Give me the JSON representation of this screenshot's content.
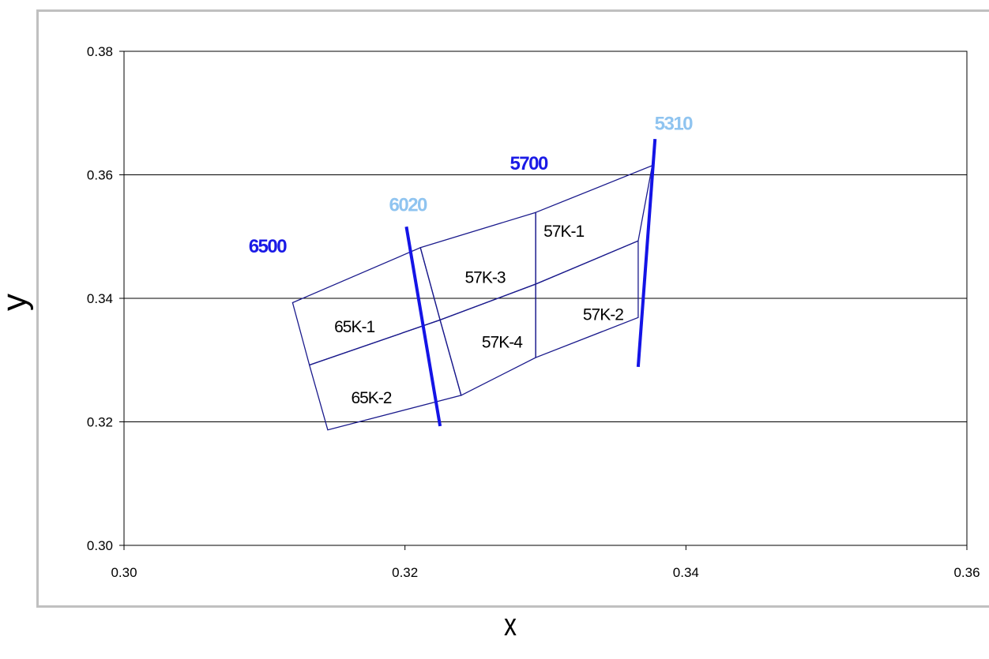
{
  "chart_data": {
    "type": "scatter",
    "xlabel": "x",
    "ylabel": "y",
    "xlim": [
      0.3,
      0.36
    ],
    "ylim": [
      0.3,
      0.38
    ],
    "x_ticks": [
      "0.30",
      "0.32",
      "0.34",
      "0.36"
    ],
    "y_ticks": [
      "0.30",
      "0.32",
      "0.34",
      "0.36",
      "0.38"
    ],
    "grid": "horizontal",
    "colors": {
      "box": "#1a1a8c",
      "cct_line": "#1414e6",
      "cct_dark": "#1a1ae6",
      "cct_light": "#8fc4f0"
    },
    "regions": [
      {
        "name": "65K-1",
        "points": [
          [
            0.312,
            0.3393
          ],
          [
            0.3211,
            0.3482
          ],
          [
            0.3225,
            0.3365
          ],
          [
            0.3132,
            0.3292
          ]
        ]
      },
      {
        "name": "65K-2",
        "points": [
          [
            0.3132,
            0.3292
          ],
          [
            0.3225,
            0.3365
          ],
          [
            0.324,
            0.3243
          ],
          [
            0.3145,
            0.3187
          ]
        ]
      },
      {
        "name": "57K-3",
        "points": [
          [
            0.3211,
            0.3482
          ],
          [
            0.3293,
            0.3539
          ],
          [
            0.3293,
            0.3423
          ],
          [
            0.3225,
            0.3365
          ]
        ]
      },
      {
        "name": "57K-4",
        "points": [
          [
            0.3225,
            0.3365
          ],
          [
            0.3293,
            0.3423
          ],
          [
            0.3293,
            0.3304
          ],
          [
            0.324,
            0.3243
          ]
        ]
      },
      {
        "name": "57K-1",
        "points": [
          [
            0.3293,
            0.3539
          ],
          [
            0.3376,
            0.3615
          ],
          [
            0.3366,
            0.3493
          ],
          [
            0.3293,
            0.3423
          ]
        ]
      },
      {
        "name": "57K-2",
        "points": [
          [
            0.3293,
            0.3423
          ],
          [
            0.3366,
            0.3493
          ],
          [
            0.3366,
            0.3369
          ],
          [
            0.3293,
            0.3304
          ]
        ]
      }
    ],
    "region_labels": [
      {
        "text": "65K-1",
        "x": 0.3164,
        "y": 0.3345
      },
      {
        "text": "65K-2",
        "x": 0.3176,
        "y": 0.323
      },
      {
        "text": "57K-3",
        "x": 0.3257,
        "y": 0.3425
      },
      {
        "text": "57K-4",
        "x": 0.3269,
        "y": 0.332
      },
      {
        "text": "57K-1",
        "x": 0.3313,
        "y": 0.35
      },
      {
        "text": "57K-2",
        "x": 0.3341,
        "y": 0.3365
      }
    ],
    "cct_lines": [
      {
        "x1": 0.3201,
        "y1": 0.3516,
        "x2": 0.3225,
        "y2": 0.3193
      },
      {
        "x1": 0.3378,
        "y1": 0.3658,
        "x2": 0.3366,
        "y2": 0.3289
      }
    ],
    "annotations": [
      {
        "text": "6500",
        "x": 0.3102,
        "y": 0.3474,
        "color": "#1a1ae6"
      },
      {
        "text": "6020",
        "x": 0.3202,
        "y": 0.3541,
        "color": "#8fc4f0"
      },
      {
        "text": "5700",
        "x": 0.3288,
        "y": 0.3608,
        "color": "#1a1ae6"
      },
      {
        "text": "5310",
        "x": 0.3391,
        "y": 0.3673,
        "color": "#8fc4f0"
      }
    ]
  }
}
